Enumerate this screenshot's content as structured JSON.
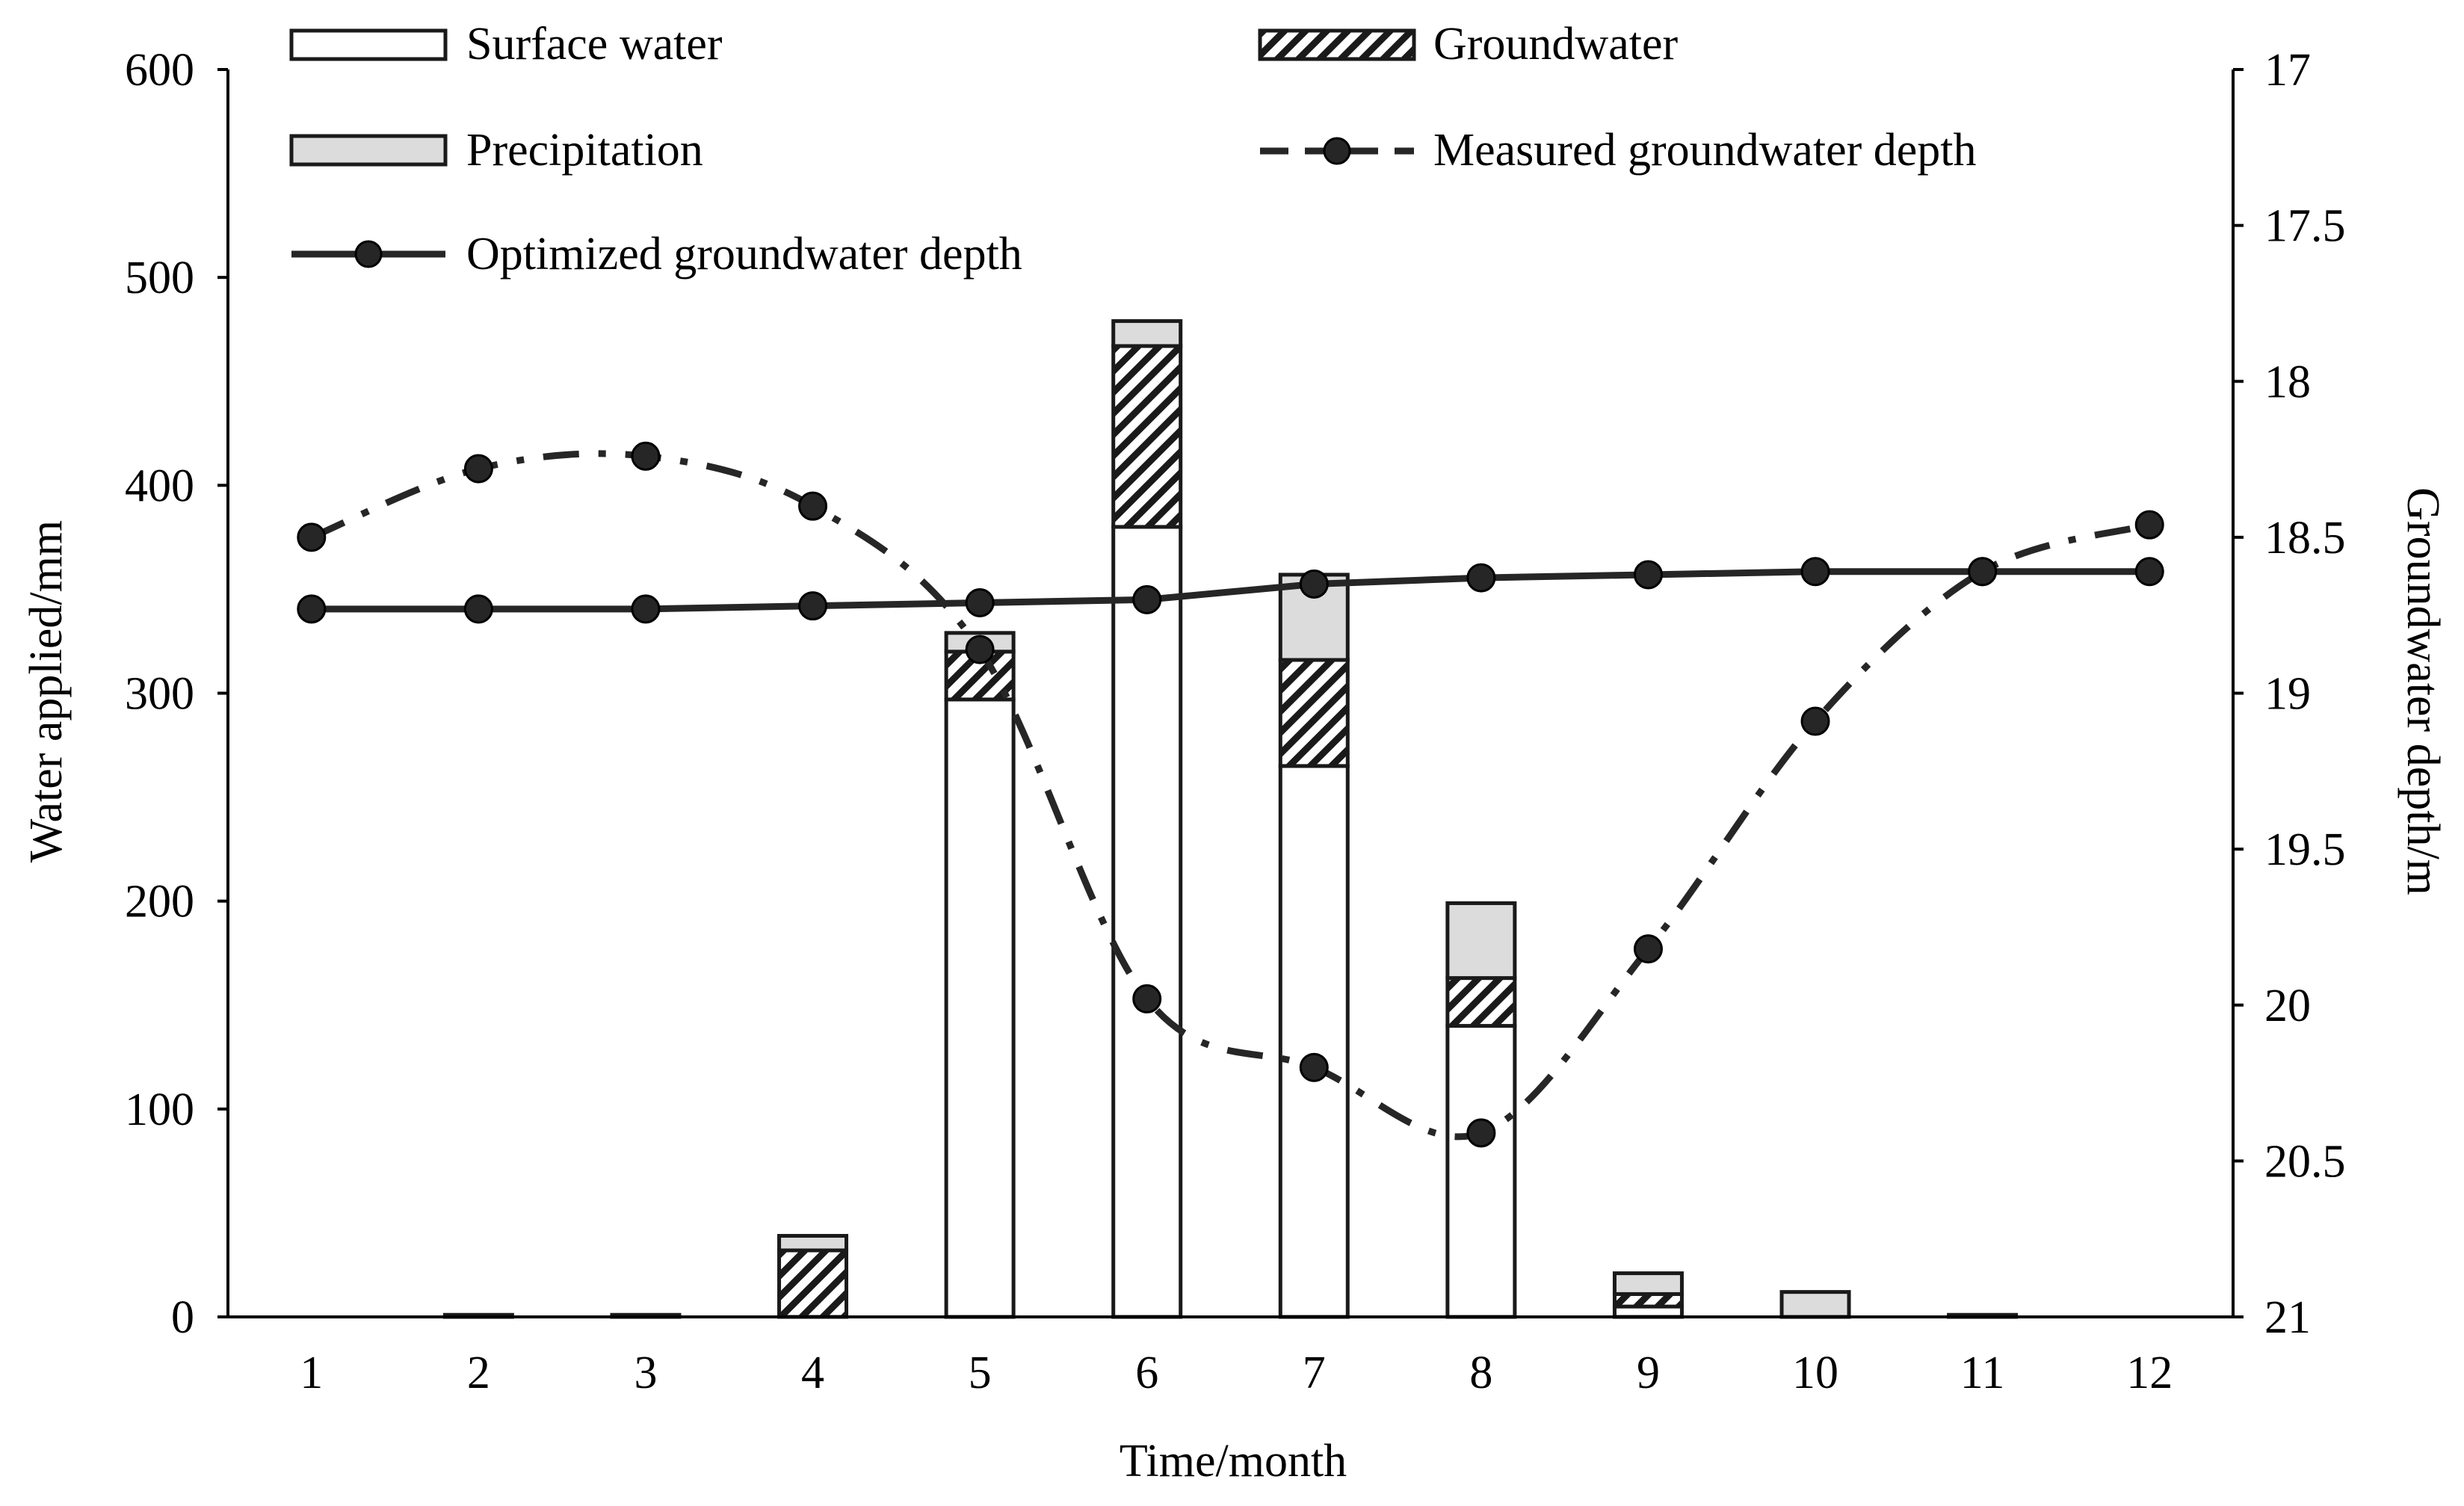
{
  "chart_data": {
    "type": "bar",
    "stacked": true,
    "title": "",
    "xlabel": "Time/month",
    "ylabel": "Water applied/mm",
    "y2label": "Groundwater depth/m",
    "categories": [
      "1",
      "2",
      "3",
      "4",
      "5",
      "6",
      "7",
      "8",
      "9",
      "10",
      "11",
      "12"
    ],
    "ylim": [
      0,
      600
    ],
    "yticks": [
      "0",
      "100",
      "200",
      "300",
      "400",
      "500",
      "600"
    ],
    "y2lim": [
      17,
      21
    ],
    "y2_inverted": true,
    "y2ticks": [
      "17",
      "17.5",
      "18",
      "18.5",
      "19",
      "19.5",
      "20",
      "20.5",
      "21"
    ],
    "series": [
      {
        "name": "Surface water",
        "kind": "bar",
        "values": [
          0,
          0,
          0,
          0,
          297,
          380,
          265,
          140,
          5,
          0,
          0,
          0
        ]
      },
      {
        "name": "Groundwater",
        "kind": "bar",
        "values": [
          0,
          1,
          1,
          32,
          23,
          87,
          51,
          23,
          6,
          0,
          1,
          0
        ]
      },
      {
        "name": "Precipitation",
        "kind": "bar",
        "values": [
          0,
          0,
          0,
          7,
          9,
          12,
          41,
          36,
          10,
          12,
          0,
          0
        ]
      },
      {
        "name": "Measured groundwater depth",
        "kind": "line",
        "axis": "y2",
        "style": "dash-dot",
        "values": [
          18.5,
          18.28,
          18.24,
          18.4,
          18.86,
          19.98,
          20.2,
          20.41,
          19.82,
          19.09,
          18.61,
          18.46
        ]
      },
      {
        "name": "Optimized groundwater depth",
        "kind": "line",
        "axis": "y2",
        "style": "solid",
        "values": [
          18.73,
          18.73,
          18.73,
          18.72,
          18.71,
          18.7,
          18.65,
          18.63,
          18.62,
          18.61,
          18.61,
          18.61
        ]
      }
    ],
    "legend": {
      "placement": "top",
      "labels": [
        "Surface water",
        "Groundwater",
        "Precipitation",
        "Measured groundwater depth",
        "Optimized groundwater depth"
      ]
    },
    "grid": false
  },
  "colors": {
    "surface_fill": "#ffffff",
    "groundwater_hatch": "#1a1a1a",
    "precip_fill": "#dcdcdc",
    "bar_stroke": "#1a1a1a",
    "line_color": "#262626",
    "axis": "#000000"
  }
}
